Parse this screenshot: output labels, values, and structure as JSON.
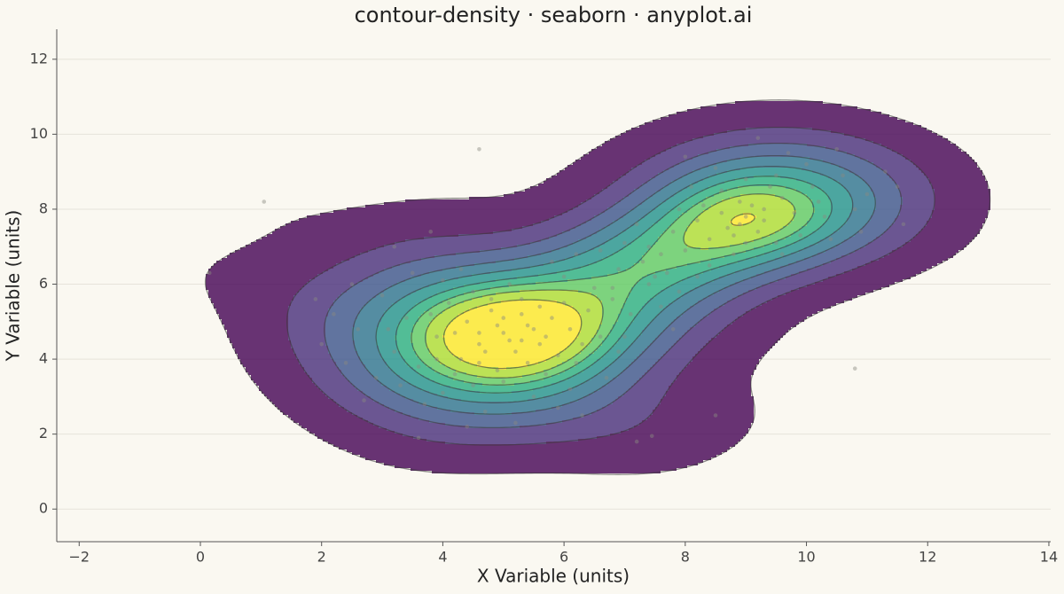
{
  "chart_data": {
    "type": "kde",
    "title": "contour-density · seaborn · anyplot.ai",
    "x_label": "X Variable (units)",
    "y_label": "Y Variable (units)",
    "xlim": [
      -2.37,
      14.03
    ],
    "ylim": [
      -0.87,
      12.8
    ],
    "xticks": [
      {
        "value": -2,
        "label": "−2"
      },
      0,
      2,
      4,
      6,
      8,
      10,
      12,
      14
    ],
    "yticks": [
      0,
      2,
      4,
      6,
      8,
      10,
      12
    ],
    "grid": true,
    "point_color": "#8a8a80",
    "colormap": [
      "#440154",
      "#472d7b",
      "#3b528b",
      "#2c728e",
      "#21918c",
      "#28ae80",
      "#5ec962",
      "#addc30",
      "#fde725"
    ],
    "x": [
      5.0,
      4.6,
      5.4,
      5.8,
      4.3,
      5.2,
      6.1,
      4.8,
      3.9,
      5.6,
      4.4,
      5.9,
      6.4,
      3.6,
      4.9,
      5.3,
      6.8,
      4.1,
      3.2,
      5.7,
      6.6,
      4.5,
      5.1,
      3.4,
      6.2,
      2.9,
      4.0,
      7.1,
      5.5,
      3.7,
      6.9,
      2.6,
      4.7,
      6.0,
      3.0,
      7.4,
      5.9,
      2.4,
      4.2,
      5.3,
      4.9,
      5.6,
      4.6,
      6.3,
      3.8,
      5.0,
      6.5,
      4.3,
      3.3,
      6.7,
      2.2,
      7.6,
      5.2,
      4.0,
      5.8,
      3.5,
      2.7,
      7.0,
      6.1,
      4.5,
      2.0,
      3.1,
      5.4,
      4.7,
      5.5,
      4.2,
      6.0,
      3.9,
      5.7,
      4.8,
      1.9,
      3.6,
      6.3,
      7.8,
      2.5,
      4.4,
      5.0,
      5.3,
      4.6,
      5.1,
      9.0,
      8.7,
      9.3,
      8.4,
      9.6,
      8.9,
      9.2,
      8.2,
      9.8,
      8.6,
      10.1,
      8.0,
      9.5,
      7.8,
      10.3,
      9.0,
      8.3,
      10.6,
      7.6,
      9.9,
      8.8,
      10.0,
      8.1,
      11.0,
      9.4,
      7.4,
      10.4,
      8.5,
      9.7,
      11.3,
      8.9,
      9.1,
      8.6,
      9.3,
      7.9,
      10.2,
      8.4,
      9.6,
      10.8,
      7.2,
      8.0,
      11.5,
      9.2,
      10.5,
      7.7,
      8.8,
      9.5,
      8.2,
      10.9,
      9.0,
      6.9,
      7.3,
      6.6,
      7.5,
      7.0,
      6.2,
      7.9,
      6.8,
      3.2,
      3.8,
      0.15,
      1.05,
      4.6,
      10.8,
      8.5,
      7.2,
      7.45,
      11.6
    ],
    "y": [
      4.7,
      4.4,
      4.9,
      5.1,
      4.0,
      4.2,
      4.8,
      5.3,
      4.6,
      4.4,
      5.0,
      4.1,
      5.3,
      3.8,
      3.7,
      5.6,
      5.6,
      5.5,
      4.2,
      3.6,
      4.6,
      3.3,
      6.0,
      5.1,
      3.9,
      3.5,
      6.1,
      5.2,
      3.0,
      2.8,
      4.2,
      4.8,
      2.6,
      6.2,
      5.7,
      6.0,
      2.7,
      3.9,
      4.7,
      4.5,
      4.9,
      5.4,
      3.9,
      4.4,
      5.2,
      3.4,
      5.9,
      6.4,
      3.3,
      3.5,
      5.2,
      5.4,
      2.3,
      3.1,
      6.6,
      6.3,
      2.9,
      4.6,
      3.2,
      5.8,
      4.4,
      4.8,
      3.9,
      4.2,
      4.8,
      3.6,
      5.5,
      4.0,
      4.6,
      5.6,
      5.6,
      1.9,
      2.5,
      4.8,
      6.0,
      2.2,
      5.1,
      5.2,
      4.7,
      4.5,
      7.8,
      7.5,
      8.0,
      7.2,
      8.3,
      8.2,
      7.4,
      7.7,
      7.9,
      8.5,
      8.6,
      6.9,
      7.1,
      7.4,
      7.8,
      8.8,
      8.1,
      8.9,
      6.8,
      7.3,
      6.8,
      9.2,
      8.6,
      8.4,
      8.6,
      7.0,
      7.2,
      9.1,
      9.5,
      9.0,
      7.6,
      8.1,
      7.9,
      7.7,
      8.0,
      8.2,
      6.5,
      6.8,
      8.0,
      7.6,
      9.4,
      8.6,
      9.9,
      9.6,
      6.3,
      7.3,
      8.9,
      6.2,
      7.4,
      7.1,
      6.4,
      6.6,
      6.9,
      6.2,
      7.1,
      6.8,
      5.8,
      5.9,
      7.0,
      7.4,
      6.3,
      8.2,
      9.6,
      3.75,
      2.5,
      1.8,
      1.95,
      7.6
    ]
  }
}
